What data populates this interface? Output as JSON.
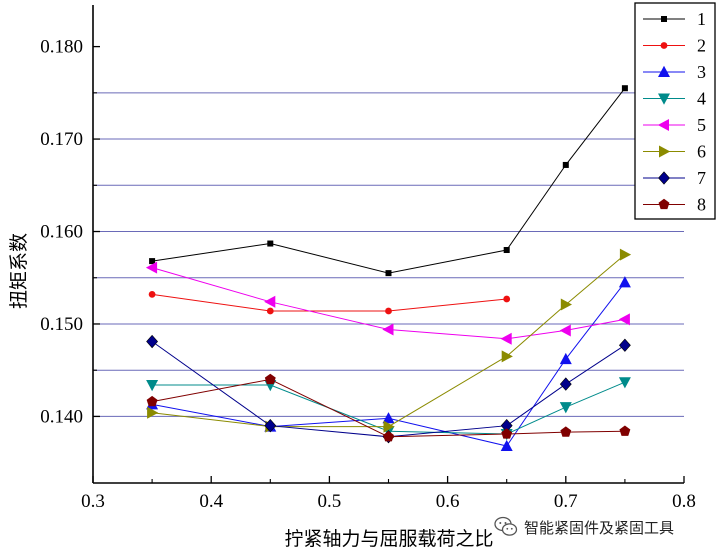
{
  "chart_data": {
    "type": "line",
    "xlabel": "拧紧轴力与屈服载荷之比",
    "ylabel": "扭矩系数",
    "xlim": [
      0.3,
      0.8
    ],
    "ylim": [
      0.1328,
      0.1845
    ],
    "xticks": [
      "0.3",
      "0.4",
      "0.5",
      "0.6",
      "0.7",
      "0.8"
    ],
    "yticks": [
      "0.140",
      "0.150",
      "0.160",
      "0.170",
      "0.180"
    ],
    "x_tick_values": [
      0.3,
      0.4,
      0.5,
      0.6,
      0.7,
      0.8
    ],
    "y_tick_values": [
      0.14,
      0.15,
      0.16,
      0.17,
      0.18
    ],
    "gridlines_y": [
      0.14,
      0.145,
      0.15,
      0.155,
      0.16,
      0.165,
      0.17,
      0.175
    ],
    "grid_color": "#6a6ab8",
    "legend_position": "top-right",
    "series": [
      {
        "name": "1",
        "color": "#000000",
        "marker": "square",
        "x": [
          0.35,
          0.45,
          0.55,
          0.65,
          0.7,
          0.75
        ],
        "y": [
          0.1568,
          0.1587,
          0.1555,
          0.158,
          0.1672,
          0.1755
        ]
      },
      {
        "name": "2",
        "color": "#ee1111",
        "marker": "circle",
        "x": [
          0.35,
          0.45,
          0.55,
          0.65
        ],
        "y": [
          0.1532,
          0.1514,
          0.1514,
          0.1527
        ]
      },
      {
        "name": "3",
        "color": "#1111ee",
        "marker": "triangle-up",
        "x": [
          0.35,
          0.45,
          0.55,
          0.65,
          0.7,
          0.75
        ],
        "y": [
          0.1413,
          0.1389,
          0.1398,
          0.1368,
          0.1462,
          0.1545
        ]
      },
      {
        "name": "4",
        "color": "#008b8b",
        "marker": "triangle-down",
        "x": [
          0.35,
          0.45,
          0.55,
          0.65,
          0.7,
          0.75
        ],
        "y": [
          0.1434,
          0.1434,
          0.1384,
          0.1381,
          0.141,
          0.1437
        ]
      },
      {
        "name": "5",
        "color": "#ee00ee",
        "marker": "triangle-left",
        "x": [
          0.35,
          0.45,
          0.55,
          0.65,
          0.7,
          0.75
        ],
        "y": [
          0.1561,
          0.1524,
          0.1494,
          0.1484,
          0.1493,
          0.1505
        ]
      },
      {
        "name": "6",
        "color": "#8b8b00",
        "marker": "triangle-right",
        "x": [
          0.35,
          0.45,
          0.55,
          0.65,
          0.7,
          0.75
        ],
        "y": [
          0.1404,
          0.1389,
          0.1389,
          0.1465,
          0.1521,
          0.1575
        ]
      },
      {
        "name": "7",
        "color": "#00008b",
        "marker": "diamond",
        "x": [
          0.35,
          0.45,
          0.55,
          0.65,
          0.7,
          0.75
        ],
        "y": [
          0.1481,
          0.139,
          0.1378,
          0.139,
          0.1435,
          0.1477
        ]
      },
      {
        "name": "8",
        "color": "#800000",
        "marker": "pentagon",
        "x": [
          0.35,
          0.45,
          0.55,
          0.65,
          0.7,
          0.75
        ],
        "y": [
          0.1416,
          0.144,
          0.1378,
          0.1381,
          0.1383,
          0.1384
        ]
      }
    ]
  },
  "watermark": {
    "text": "智能紧固件及紧固工具",
    "icon": "wechat-icon",
    "color": "#333333"
  }
}
